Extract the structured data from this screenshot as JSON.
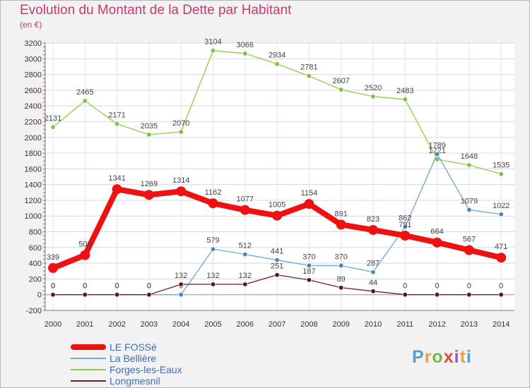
{
  "chart_data": {
    "type": "line",
    "title": "Evolution du Montant de la Dette par Habitant",
    "subtitle": "(en €)",
    "xlabel": "",
    "ylabel": "",
    "ylim": [
      -200,
      3200
    ],
    "yticks": [
      -200,
      0,
      200,
      400,
      600,
      800,
      1000,
      1200,
      1400,
      1600,
      1800,
      2000,
      2200,
      2400,
      2600,
      2800,
      3000,
      3200
    ],
    "ytick_labels": [
      "-200",
      "0",
      "200",
      "400",
      "600",
      "800",
      "1000",
      "1200",
      "1400",
      "1600",
      "1800",
      "2000",
      "2200",
      "2400",
      "2600",
      "2800",
      "3000",
      "3200"
    ],
    "categories": [
      "2000",
      "2001",
      "2002",
      "2003",
      "2004",
      "2005",
      "2006",
      "2007",
      "2008",
      "2009",
      "2010",
      "2011",
      "2012",
      "2013",
      "2014"
    ],
    "grid": true,
    "legend_position": "bottom-left",
    "series": [
      {
        "name": "Forges-les-Eaux",
        "color": "#8cce4a",
        "values": [
          2131,
          2465,
          2171,
          2035,
          2070,
          3104,
          3066,
          2934,
          2781,
          2607,
          2520,
          2483,
          1721,
          1648,
          1535
        ]
      },
      {
        "name": "La Bellière",
        "color": "#6fa6d3",
        "values": [
          0,
          0,
          0,
          0,
          0,
          579,
          512,
          441,
          370,
          370,
          287,
          862,
          1789,
          1079,
          1022
        ]
      },
      {
        "name": "Longmesnil",
        "color": "#6e1f22",
        "values": [
          0,
          0,
          0,
          0,
          132,
          132,
          132,
          251,
          187,
          89,
          44,
          0,
          0,
          0,
          0
        ]
      },
      {
        "name": "LE FOSSé",
        "color": "#ee1111",
        "values": [
          339,
          503,
          1341,
          1269,
          1314,
          1162,
          1077,
          1005,
          1154,
          891,
          823,
          751,
          664,
          567,
          471
        ]
      }
    ]
  },
  "legend": {
    "items": [
      {
        "label": "LE FOSSé",
        "color": "#ee1111"
      },
      {
        "label": "La Bellière",
        "color": "#6fa6d3"
      },
      {
        "label": "Forges-les-Eaux",
        "color": "#8cce4a"
      },
      {
        "label": "Longmesnil",
        "color": "#6e1f22"
      }
    ]
  },
  "logo": {
    "letters": [
      "P",
      "r",
      "o",
      "x",
      "i",
      "t",
      "i"
    ],
    "colors": [
      "#4aa0d8",
      "#f0a03a",
      "#77b843",
      "#e04a3a",
      "#9b5bb3",
      "#f0a03a",
      "#4aa0d8"
    ]
  }
}
